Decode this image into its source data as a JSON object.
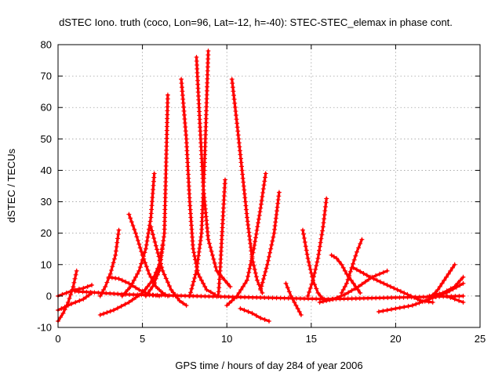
{
  "chart_data": {
    "type": "scatter",
    "title": "dSTEC Iono. truth (coco, Lon=96, Lat=-12, h=-40): STEC-STEC_elemax in phase cont.",
    "xlabel": "GPS time / hours of day 284 of year 2006",
    "ylabel": "dSTEC  / TECUs",
    "xlim": [
      0,
      25
    ],
    "ylim": [
      -10,
      80
    ],
    "xticks": [
      0,
      5,
      10,
      15,
      20,
      25
    ],
    "yticks": [
      -10,
      0,
      10,
      20,
      30,
      40,
      50,
      60,
      70,
      80
    ],
    "grid": true,
    "marker": "+",
    "color": "#ff0000",
    "series": [
      {
        "x": [
          0.0,
          0.3,
          0.6,
          0.9,
          1.1
        ],
        "y": [
          -8.0,
          -5.5,
          -2.0,
          3.0,
          8.0
        ]
      },
      {
        "x": [
          0.0,
          0.5,
          1.0,
          1.5,
          2.0
        ],
        "y": [
          0.0,
          1.0,
          2.0,
          2.5,
          3.5
        ]
      },
      {
        "x": [
          0.0,
          0.8,
          1.5,
          2.0
        ],
        "y": [
          -4.5,
          -2.5,
          -1.0,
          1.0
        ]
      },
      {
        "x": [
          2.5,
          2.8,
          3.1,
          3.4,
          3.6
        ],
        "y": [
          0.0,
          3.0,
          7.0,
          13.0,
          21.0
        ]
      },
      {
        "x": [
          2.5,
          3.3,
          4.2,
          5.0,
          5.6,
          6.0,
          6.2
        ],
        "y": [
          -6.0,
          -4.5,
          -2.0,
          1.0,
          5.0,
          10.0,
          16.0
        ]
      },
      {
        "x": [
          3.0,
          3.6,
          4.2,
          4.8,
          5.4,
          6.0
        ],
        "y": [
          6.0,
          5.5,
          4.0,
          2.0,
          0.5,
          0.0
        ]
      },
      {
        "x": [
          4.2,
          4.6,
          5.0,
          5.4,
          5.8,
          6.2,
          6.5
        ],
        "y": [
          26.0,
          20.0,
          13.0,
          7.0,
          3.0,
          1.0,
          0.0
        ]
      },
      {
        "x": [
          3.8,
          4.3,
          4.8,
          5.2,
          5.5,
          5.7
        ],
        "y": [
          0.0,
          3.0,
          8.0,
          15.0,
          25.0,
          39.0
        ]
      },
      {
        "x": [
          5.2,
          5.6,
          6.0,
          6.3,
          6.5
        ],
        "y": [
          0.0,
          3.0,
          8.0,
          20.0,
          64.0
        ]
      },
      {
        "x": [
          5.5,
          5.8,
          6.2,
          6.7,
          7.2,
          7.6
        ],
        "y": [
          22.0,
          16.0,
          8.0,
          2.0,
          -1.5,
          -3.0
        ]
      },
      {
        "x": [
          7.3,
          7.6,
          7.8,
          8.0,
          8.3,
          8.8,
          9.3
        ],
        "y": [
          69.0,
          50.0,
          30.0,
          15.0,
          7.0,
          2.0,
          0.5
        ]
      },
      {
        "x": [
          7.8,
          8.2,
          8.5,
          8.7,
          8.9
        ],
        "y": [
          0.0,
          8.0,
          20.0,
          45.0,
          78.0
        ]
      },
      {
        "x": [
          8.2,
          8.4,
          8.6,
          8.9,
          9.4,
          10.2
        ],
        "y": [
          76.0,
          55.0,
          35.0,
          18.0,
          8.0,
          3.0
        ]
      },
      {
        "x": [
          9.5,
          9.6,
          9.7,
          9.8,
          9.9
        ],
        "y": [
          0.0,
          8.0,
          18.0,
          28.0,
          37.0
        ]
      },
      {
        "x": [
          10.3,
          10.6,
          10.9,
          11.2,
          11.5,
          11.8,
          12.1
        ],
        "y": [
          69.0,
          55.0,
          40.0,
          25.0,
          12.0,
          5.0,
          1.0
        ]
      },
      {
        "x": [
          10.0,
          10.6,
          11.2,
          11.6,
          12.0,
          12.3
        ],
        "y": [
          -3.0,
          0.0,
          5.0,
          15.0,
          28.0,
          39.0
        ]
      },
      {
        "x": [
          12.0,
          12.4,
          12.8,
          13.1
        ],
        "y": [
          2.0,
          10.0,
          20.0,
          33.0
        ]
      },
      {
        "x": [
          10.8,
          11.5,
          12.0,
          12.5
        ],
        "y": [
          -4.0,
          -5.5,
          -7.0,
          -8.0
        ]
      },
      {
        "x": [
          13.5,
          13.8,
          14.1,
          14.4
        ],
        "y": [
          4.0,
          0.0,
          -3.0,
          -6.0
        ]
      },
      {
        "x": [
          14.5,
          14.8,
          15.1,
          15.4,
          15.7
        ],
        "y": [
          21.0,
          12.0,
          5.0,
          1.0,
          -1.0
        ]
      },
      {
        "x": [
          14.8,
          15.1,
          15.4,
          15.7,
          15.9
        ],
        "y": [
          0.0,
          5.0,
          12.0,
          22.0,
          31.0
        ]
      },
      {
        "x": [
          16.2,
          16.5,
          16.8,
          17.1,
          17.5,
          17.9
        ],
        "y": [
          13.0,
          12.0,
          10.0,
          7.0,
          4.0,
          1.0
        ]
      },
      {
        "x": [
          16.8,
          17.1,
          17.4,
          17.7,
          18.0
        ],
        "y": [
          1.0,
          4.0,
          9.0,
          14.0,
          18.0
        ]
      },
      {
        "x": [
          15.5,
          16.3,
          17.0,
          17.8,
          18.6,
          19.5
        ],
        "y": [
          -2.0,
          -1.0,
          0.5,
          3.0,
          6.0,
          8.0
        ]
      },
      {
        "x": [
          17.5,
          18.5,
          19.5,
          20.5,
          21.5,
          22.2
        ],
        "y": [
          9.0,
          6.0,
          3.5,
          1.0,
          -1.5,
          -2.0
        ]
      },
      {
        "x": [
          19.0,
          20.0,
          21.0,
          22.0,
          23.0,
          24.0
        ],
        "y": [
          -5.0,
          -4.0,
          -3.0,
          -1.0,
          1.0,
          4.0
        ]
      },
      {
        "x": [
          22.0,
          22.5,
          23.0,
          23.5
        ],
        "y": [
          -1.0,
          2.0,
          6.0,
          10.0
        ]
      },
      {
        "x": [
          22.0,
          22.8,
          23.5,
          24.0
        ],
        "y": [
          0.0,
          1.0,
          3.0,
          6.0
        ]
      },
      {
        "x": [
          23.0,
          23.5,
          24.0
        ],
        "y": [
          0.0,
          -1.0,
          -2.0
        ]
      },
      {
        "x": [
          1.0,
          4.0,
          8.0,
          12.0,
          16.0,
          20.0,
          24.0
        ],
        "y": [
          1.5,
          0.5,
          0.0,
          -0.5,
          -1.0,
          -0.5,
          0.0
        ]
      }
    ]
  }
}
